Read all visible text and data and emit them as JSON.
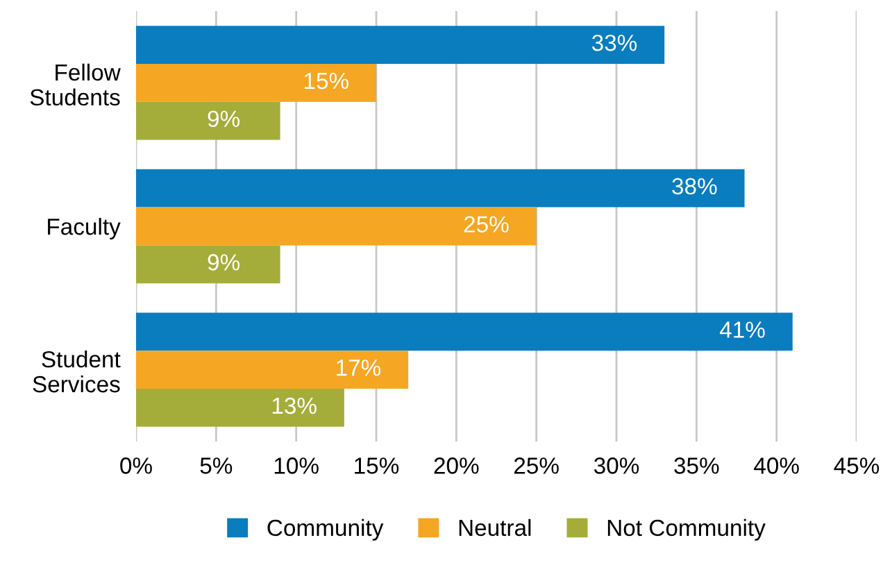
{
  "chart_data": {
    "type": "bar",
    "orientation": "horizontal",
    "categories": [
      "Fellow\nStudents",
      "Faculty",
      "Student\nServices"
    ],
    "series": [
      {
        "name": "Community",
        "color": "#0a7dbf",
        "values": [
          33,
          38,
          41
        ],
        "value_labels": [
          "33%",
          "38%",
          "41%"
        ]
      },
      {
        "name": "Neutral",
        "color": "#f5a623",
        "values": [
          15,
          25,
          17
        ],
        "value_labels": [
          "15%",
          "25%",
          "17%"
        ]
      },
      {
        "name": "Not Community",
        "color": "#a4ad3a",
        "values": [
          9,
          9,
          13
        ],
        "value_labels": [
          "9%",
          "9%",
          "13%"
        ]
      }
    ],
    "xlim": [
      0,
      45
    ],
    "xticks": [
      {
        "value": 0,
        "label": "0%"
      },
      {
        "value": 5,
        "label": "5%"
      },
      {
        "value": 10,
        "label": "10%"
      },
      {
        "value": 15,
        "label": "15%"
      },
      {
        "value": 20,
        "label": "20%"
      },
      {
        "value": 25,
        "label": "25%"
      },
      {
        "value": 30,
        "label": "30%"
      },
      {
        "value": 35,
        "label": "35%"
      },
      {
        "value": 40,
        "label": "40%"
      },
      {
        "value": 45,
        "label": "45%"
      }
    ],
    "grid": "x",
    "legend": "bottom"
  }
}
